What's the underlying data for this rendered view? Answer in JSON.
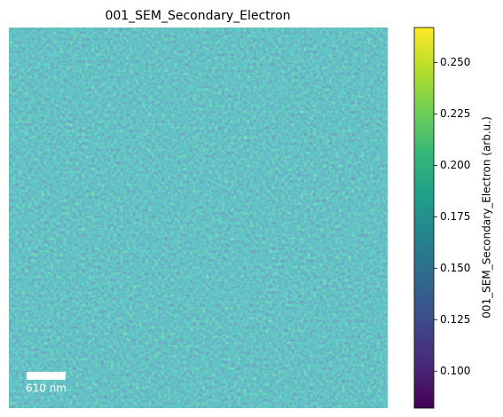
{
  "chart_data": {
    "type": "image",
    "title": "001_SEM_Secondary_Electron",
    "colorbar_label": "001_SEM_Secondary_Electron (arb.u.)",
    "colormap": "viridis",
    "clim": [
      0.082,
      0.267
    ],
    "cticks": [
      {
        "value": 0.1,
        "label": "0.100"
      },
      {
        "value": 0.125,
        "label": "0.125"
      },
      {
        "value": 0.15,
        "label": "0.150"
      },
      {
        "value": 0.175,
        "label": "0.175"
      },
      {
        "value": 0.2,
        "label": "0.200"
      },
      {
        "value": 0.225,
        "label": "0.225"
      },
      {
        "value": 0.25,
        "label": "0.250"
      }
    ],
    "scale_bar_label": "610 nm"
  }
}
